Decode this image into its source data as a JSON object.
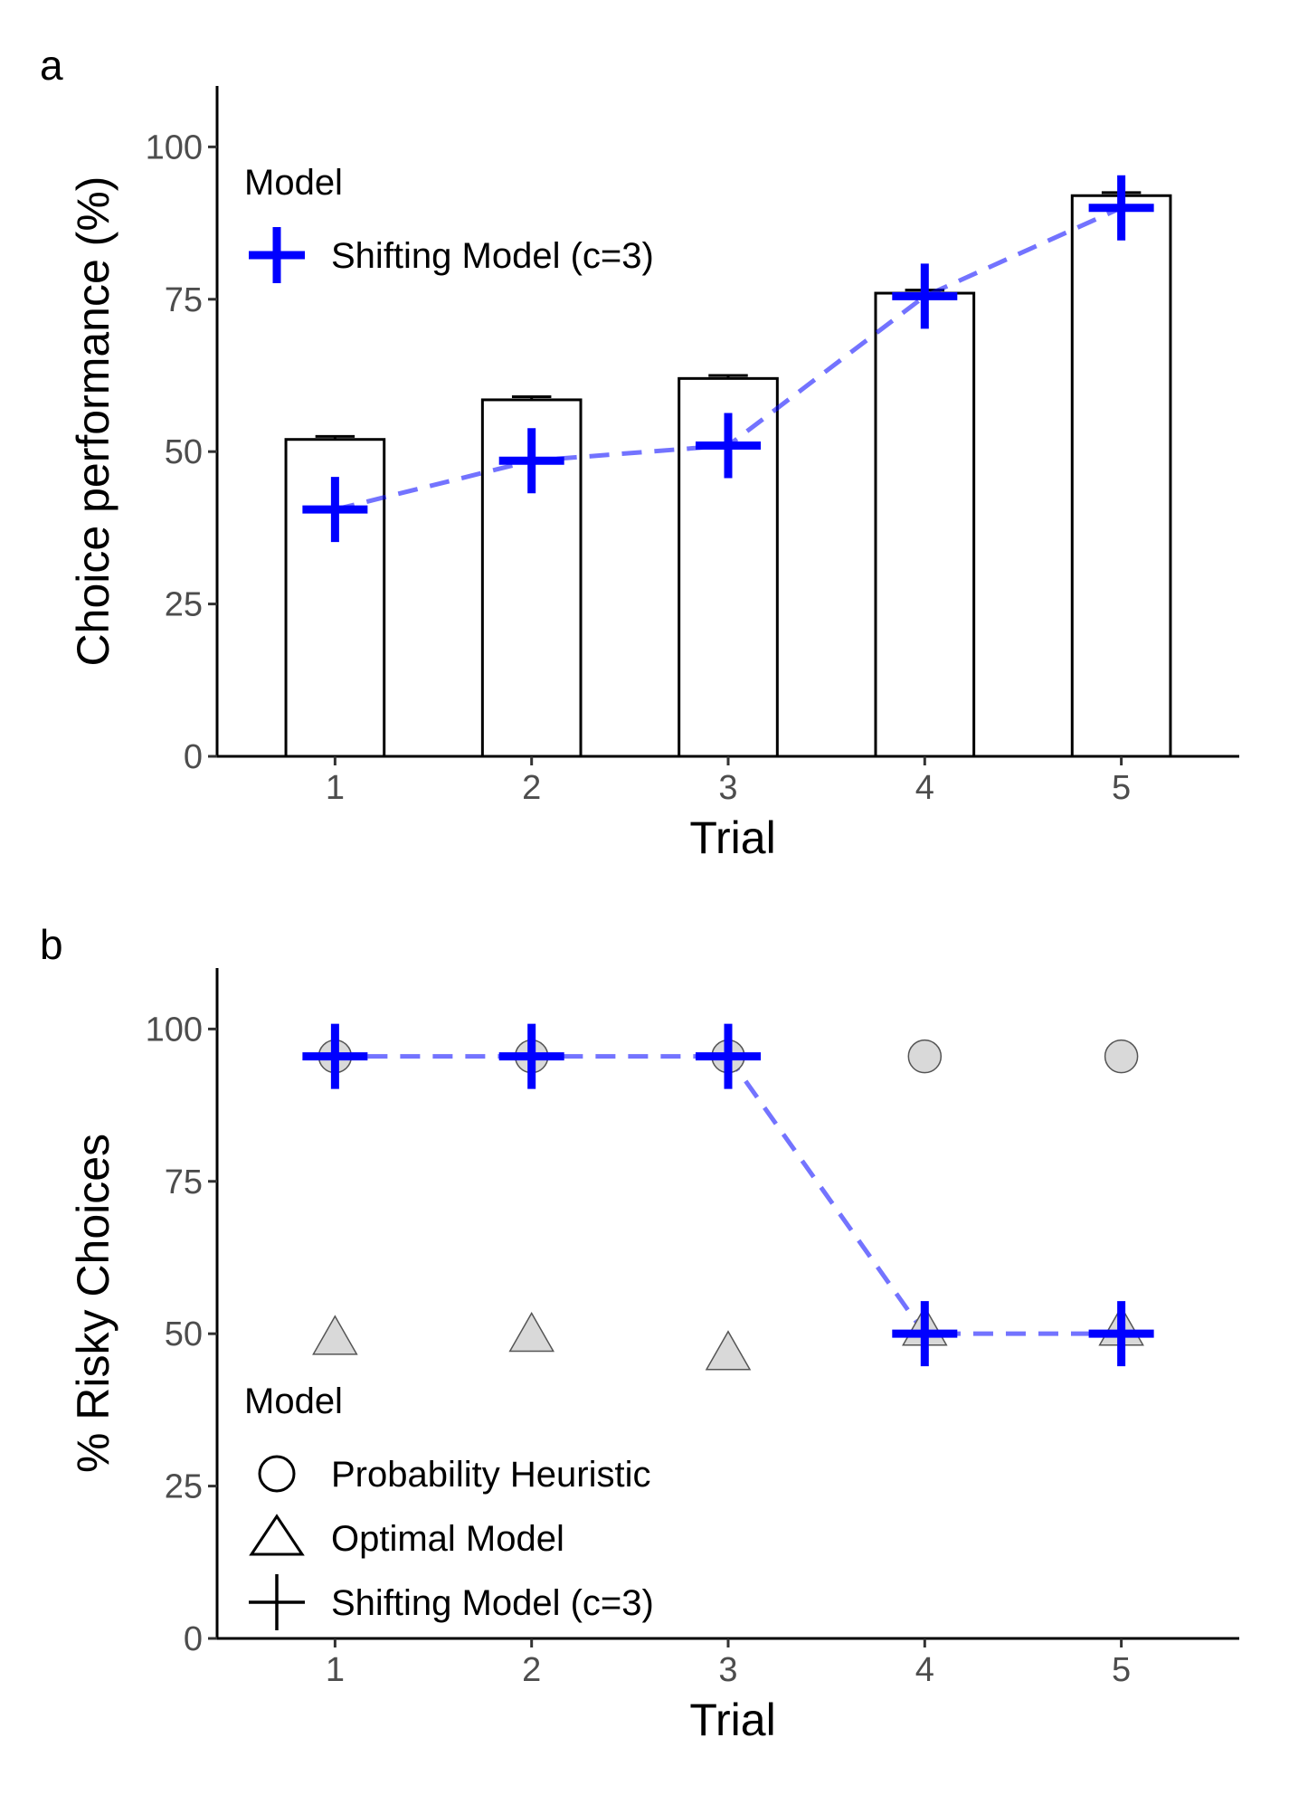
{
  "chart_data": [
    {
      "panel_label": "a",
      "type": "bar",
      "categories": [
        "1",
        "2",
        "3",
        "4",
        "5"
      ],
      "xlabel": "Trial",
      "ylabel": "Choice performance (%)",
      "ylim": [
        0,
        110
      ],
      "yticks": [
        0,
        25,
        50,
        75,
        100
      ],
      "grid": false,
      "bars": {
        "values": [
          52,
          58.5,
          62,
          76,
          92
        ],
        "error": [
          0.5,
          0.5,
          0.5,
          0.5,
          0.5
        ],
        "fill": "#ffffff",
        "stroke": "#000000"
      },
      "series": [
        {
          "name": "Shifting Model (c=3)",
          "marker": "plus",
          "color": "#0000ff",
          "line": "dashed",
          "values": [
            40.5,
            48.5,
            51,
            75.5,
            90
          ]
        }
      ],
      "legend": {
        "title": "Model",
        "position": "top-left",
        "entries": [
          "Shifting Model (c=3)"
        ]
      }
    },
    {
      "panel_label": "b",
      "type": "scatter",
      "categories": [
        "1",
        "2",
        "3",
        "4",
        "5"
      ],
      "xlabel": "Trial",
      "ylabel": "% Risky Choices",
      "ylim": [
        0,
        110
      ],
      "yticks": [
        0,
        25,
        50,
        75,
        100
      ],
      "grid": false,
      "series": [
        {
          "name": "Probability Heuristic",
          "marker": "circle",
          "color": "#d9d9d9",
          "values": [
            95.5,
            95.5,
            95.5,
            95.5,
            95.5
          ]
        },
        {
          "name": "Optimal Model",
          "marker": "triangle",
          "color": "#d9d9d9",
          "values": [
            49,
            49.5,
            46.5,
            50.5,
            50.5
          ]
        },
        {
          "name": "Shifting Model (c=3)",
          "marker": "plus",
          "color": "#0000ff",
          "line": "dashed",
          "values": [
            95.5,
            95.5,
            95.5,
            50,
            50
          ]
        }
      ],
      "legend": {
        "title": "Model",
        "position": "bottom-left",
        "entries": [
          "Probability Heuristic",
          "Optimal Model",
          "Shifting Model (c=3)"
        ]
      }
    }
  ]
}
